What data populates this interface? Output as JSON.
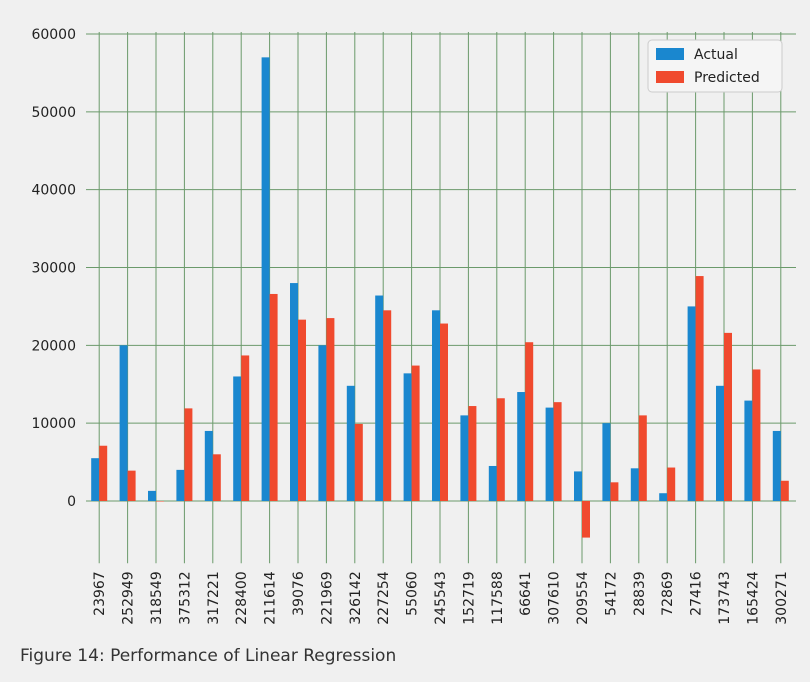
{
  "chart_data": {
    "type": "bar",
    "title": "",
    "xlabel": "",
    "ylabel": "",
    "ylim": [
      -8000,
      60000
    ],
    "yticks": [
      0,
      10000,
      20000,
      30000,
      40000,
      50000,
      60000
    ],
    "grid": true,
    "legend_position": "top-right",
    "categories": [
      "23967",
      "252949",
      "318549",
      "375312",
      "317221",
      "228400",
      "211614",
      "39076",
      "221969",
      "326142",
      "227254",
      "55060",
      "245543",
      "152719",
      "117588",
      "66641",
      "307610",
      "209554",
      "54172",
      "28839",
      "72869",
      "27416",
      "173743",
      "165424",
      "300271"
    ],
    "series": [
      {
        "name": "Actual",
        "color": "#1a87cf",
        "values": [
          5500,
          20000,
          1300,
          4000,
          9000,
          16000,
          57000,
          28000,
          20000,
          14800,
          26400,
          16400,
          24500,
          11000,
          4500,
          14000,
          12000,
          3800,
          10000,
          4200,
          1000,
          25000,
          14800,
          12900,
          9000
        ]
      },
      {
        "name": "Predicted",
        "color": "#f04a2e",
        "values": [
          7100,
          3900,
          0,
          11900,
          6000,
          18700,
          26600,
          23300,
          23500,
          9900,
          24500,
          17400,
          22800,
          12200,
          13200,
          20400,
          12700,
          -4700,
          2400,
          11000,
          4300,
          28900,
          21600,
          16900,
          2600
        ]
      }
    ]
  },
  "caption": "Figure 14: Performance of Linear Regression"
}
